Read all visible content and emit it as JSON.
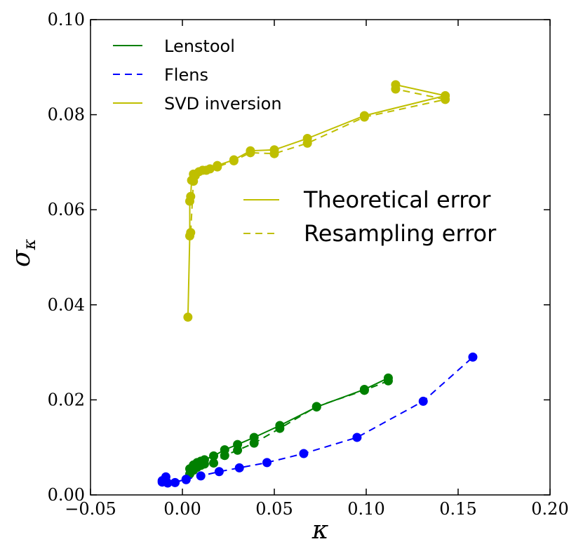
{
  "chart_data": {
    "type": "line",
    "xlabel": "κ",
    "ylabel": "σ",
    "ylabel_subscript": "κ",
    "xlim": [
      -0.05,
      0.2
    ],
    "ylim": [
      0.0,
      0.1
    ],
    "xticks": [
      -0.05,
      0.0,
      0.05,
      0.1,
      0.15,
      0.2
    ],
    "xtick_labels": [
      "−0.05",
      "0.00",
      "0.05",
      "0.10",
      "0.15",
      "0.20"
    ],
    "yticks": [
      0.0,
      0.02,
      0.04,
      0.06,
      0.08,
      0.1
    ],
    "ytick_labels": [
      "0.00",
      "0.02",
      "0.04",
      "0.06",
      "0.08",
      "0.10"
    ],
    "colors": {
      "lenstool": "#008000",
      "flens": "#0000ff",
      "svd": "#bfbf00"
    },
    "legend_methods": [
      {
        "label": "Lenstool",
        "color": "#008000",
        "style": "solid"
      },
      {
        "label": "Flens",
        "color": "#0000ff",
        "style": "dashed"
      },
      {
        "label": "SVD inversion",
        "color": "#bfbf00",
        "style": "solid"
      }
    ],
    "legend_errors": [
      {
        "label": "Theoretical error",
        "color": "#bfbf00",
        "style": "solid"
      },
      {
        "label": "Resampling error",
        "color": "#bfbf00",
        "style": "dashed"
      }
    ],
    "series": [
      {
        "name": "SVD inversion theoretical",
        "method": "svd",
        "style": "solid",
        "x": [
          0.003,
          0.004,
          0.004,
          0.0045,
          0.005,
          0.006,
          0.007,
          0.011,
          0.015,
          0.019,
          0.028,
          0.037,
          0.05,
          0.068,
          0.099,
          0.143,
          0.116
        ],
        "y": [
          0.0374,
          0.0545,
          0.0618,
          0.0628,
          0.0662,
          0.0675,
          0.0672,
          0.0683,
          0.0686,
          0.0693,
          0.0705,
          0.0724,
          0.0726,
          0.075,
          0.0798,
          0.084,
          0.0863
        ]
      },
      {
        "name": "SVD inversion resampling",
        "method": "svd",
        "style": "dashed",
        "x": [
          0.0045,
          0.006,
          0.009,
          0.013,
          0.019,
          0.028,
          0.037,
          0.05,
          0.068,
          0.099,
          0.143,
          0.116
        ],
        "y": [
          0.0552,
          0.066,
          0.068,
          0.0683,
          0.069,
          0.0703,
          0.072,
          0.0718,
          0.074,
          0.0795,
          0.0832,
          0.0854
        ]
      },
      {
        "name": "Lenstool theoretical",
        "method": "lenstool",
        "style": "solid",
        "x": [
          0.004,
          0.006,
          0.008,
          0.01,
          0.012,
          0.017,
          0.023,
          0.03,
          0.039,
          0.053,
          0.073,
          0.099,
          0.112
        ],
        "y": [
          0.0055,
          0.0063,
          0.0068,
          0.0071,
          0.0074,
          0.0082,
          0.0095,
          0.0106,
          0.0121,
          0.0146,
          0.0185,
          0.0222,
          0.0246
        ]
      },
      {
        "name": "Lenstool resampling",
        "method": "lenstool",
        "style": "dashed",
        "x": [
          0.004,
          0.006,
          0.008,
          0.01,
          0.012,
          0.017,
          0.023,
          0.03,
          0.039,
          0.053,
          0.073,
          0.099,
          0.112
        ],
        "y": [
          0.0044,
          0.0052,
          0.0058,
          0.0062,
          0.0065,
          0.0067,
          0.0083,
          0.0094,
          0.0109,
          0.014,
          0.0186,
          0.022,
          0.024
        ]
      },
      {
        "name": "Flens resampling",
        "method": "flens",
        "style": "dashed",
        "x": [
          -0.011,
          -0.009,
          -0.004,
          0.002,
          0.01,
          0.02,
          0.031,
          0.046,
          0.066,
          0.095,
          0.131,
          0.158
        ],
        "y": [
          0.0027,
          0.003,
          0.0026,
          0.0033,
          0.004,
          0.0049,
          0.0057,
          0.0068,
          0.0087,
          0.0121,
          0.0197,
          0.029
        ]
      },
      {
        "name": "Flens theoretical",
        "method": "flens",
        "style": "solid",
        "x": [
          -0.011,
          -0.009,
          -0.008,
          0.002
        ],
        "y": [
          0.003,
          0.0038,
          0.0025,
          0.0032
        ]
      }
    ]
  }
}
